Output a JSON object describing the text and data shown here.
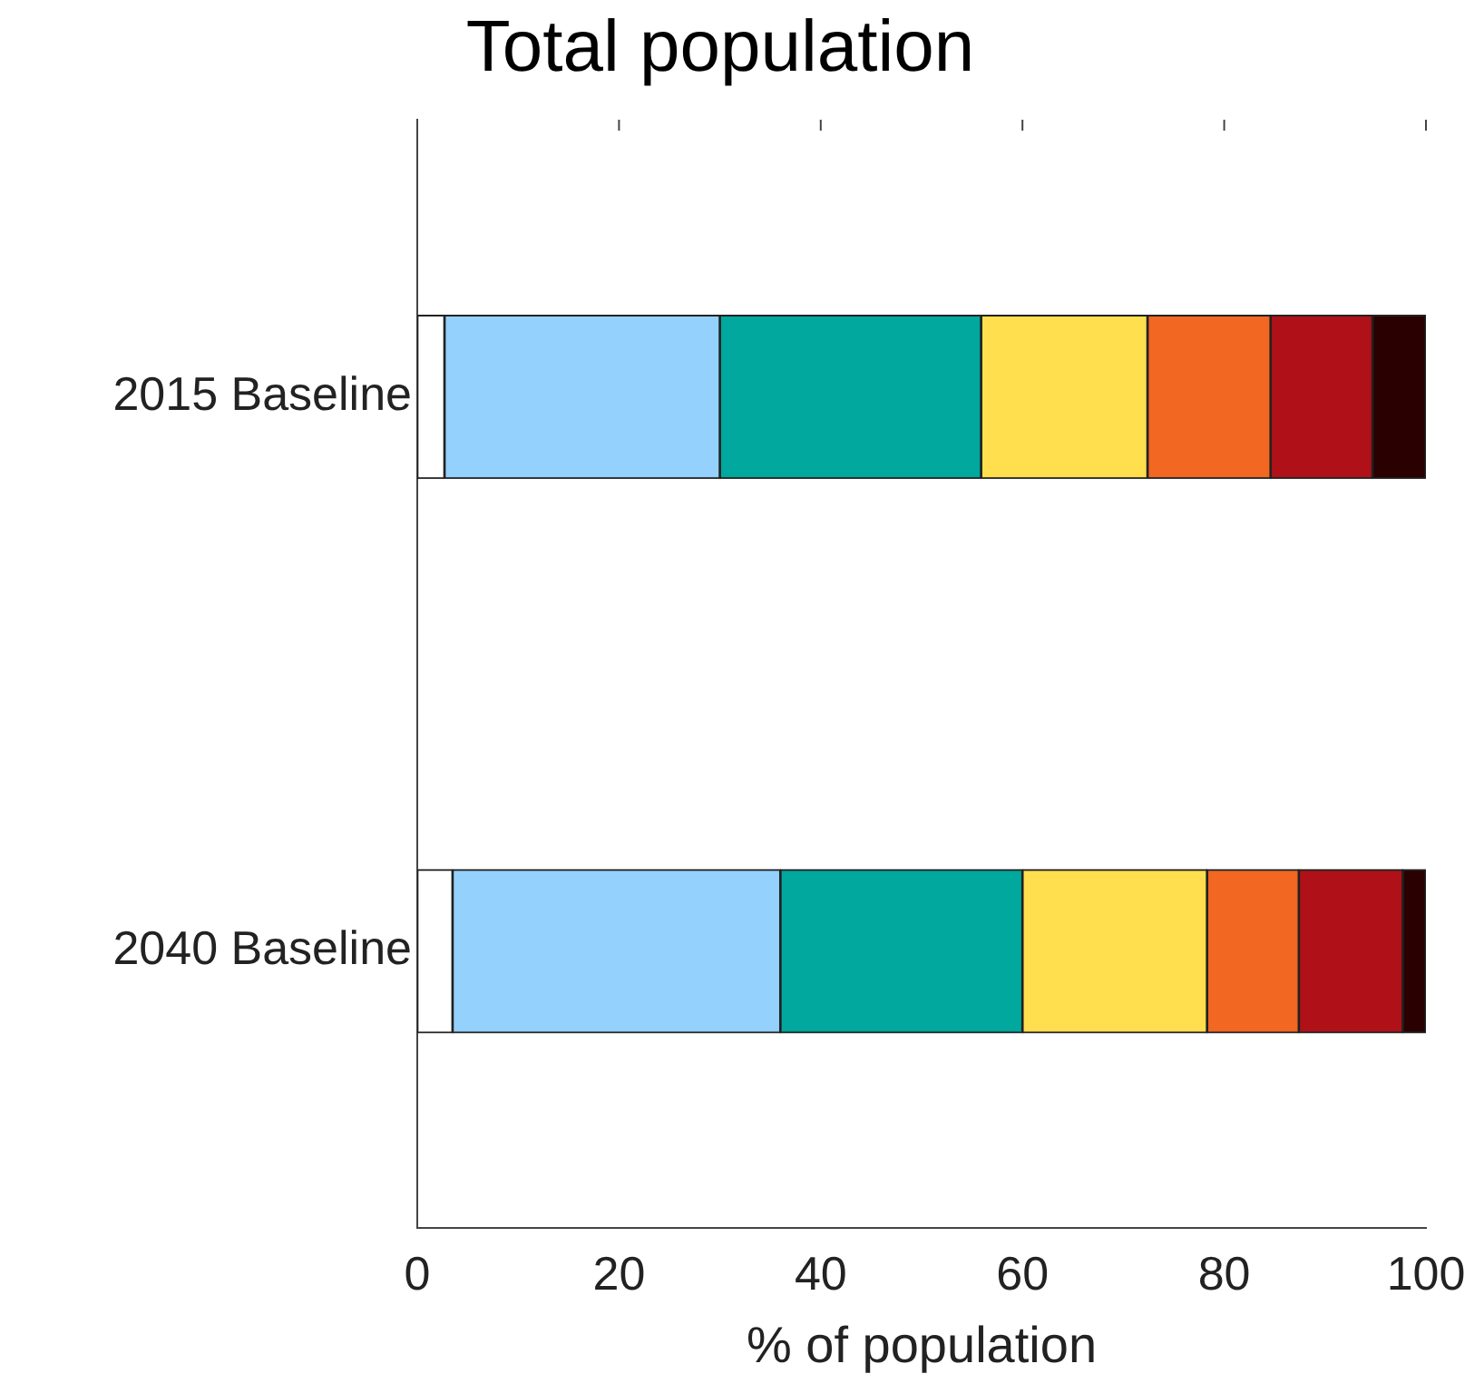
{
  "chart_data": {
    "type": "bar",
    "orientation": "horizontal",
    "stacked": true,
    "title": "Total population",
    "xlabel": "% of population",
    "categories": [
      "2015 Baseline",
      "2040 Baseline"
    ],
    "series": [
      {
        "color": "#ffffff",
        "values": [
          2.7,
          3.5
        ]
      },
      {
        "color": "#94d1fc",
        "values": [
          27.3,
          32.5
        ]
      },
      {
        "color": "#00a89d",
        "values": [
          25.9,
          24.0
        ]
      },
      {
        "color": "#ffdf4d",
        "values": [
          16.5,
          18.3
        ]
      },
      {
        "color": "#f26722",
        "values": [
          12.2,
          9.1
        ]
      },
      {
        "color": "#b01119",
        "values": [
          10.1,
          10.3
        ]
      },
      {
        "color": "#2a0000",
        "values": [
          5.3,
          2.3
        ]
      }
    ],
    "xlim": [
      0,
      100
    ],
    "xticks": [
      0,
      20,
      40,
      60,
      80,
      100
    ],
    "grid": false,
    "legend": false
  }
}
